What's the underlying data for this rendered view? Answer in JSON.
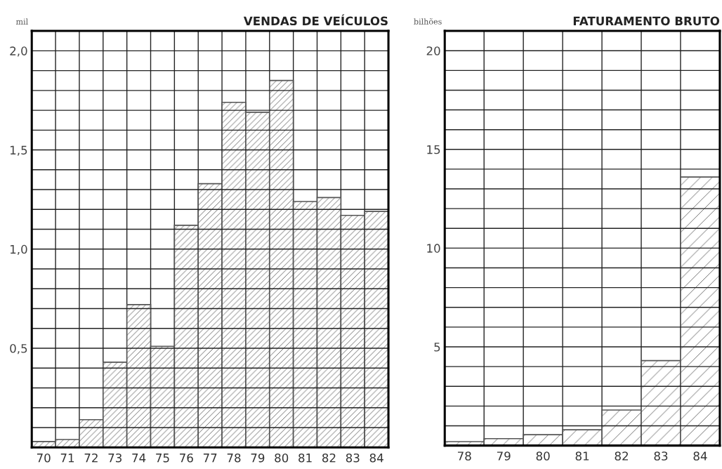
{
  "chart_data": [
    {
      "type": "bar",
      "title": "VENDAS DE VEÍCULOS",
      "ylabel": "mil",
      "categories": [
        "70",
        "71",
        "72",
        "73",
        "74",
        "75",
        "76",
        "77",
        "78",
        "79",
        "80",
        "81",
        "82",
        "83",
        "84"
      ],
      "values": [
        0.03,
        0.04,
        0.14,
        0.43,
        0.72,
        0.51,
        1.12,
        1.33,
        1.74,
        1.69,
        1.85,
        1.24,
        1.26,
        1.17,
        1.19
      ],
      "color": "#555555",
      "ylim": [
        0,
        2.1
      ],
      "yticks": [
        {
          "value": 0.1,
          "label": null
        },
        {
          "value": 0.2,
          "label": null
        },
        {
          "value": 0.3,
          "label": null
        },
        {
          "value": 0.4,
          "label": null
        },
        {
          "value": 0.5,
          "label": "0,5"
        },
        {
          "value": 0.6,
          "label": null
        },
        {
          "value": 0.7,
          "label": null
        },
        {
          "value": 0.8,
          "label": null
        },
        {
          "value": 0.9,
          "label": null
        },
        {
          "value": 1.0,
          "label": "1,0"
        },
        {
          "value": 1.1,
          "label": null
        },
        {
          "value": 1.2,
          "label": null
        },
        {
          "value": 1.3,
          "label": null
        },
        {
          "value": 1.4,
          "label": null
        },
        {
          "value": 1.5,
          "label": "1,5"
        },
        {
          "value": 1.6,
          "label": null
        },
        {
          "value": 1.7,
          "label": null
        },
        {
          "value": 1.8,
          "label": null
        },
        {
          "value": 1.9,
          "label": null
        },
        {
          "value": 2.0,
          "label": "2,0"
        }
      ],
      "grid": true
    },
    {
      "type": "bar",
      "title": "FATURAMENTO BRUTO",
      "ylabel": "bilhões",
      "categories": [
        "78",
        "79",
        "80",
        "81",
        "82",
        "83",
        "84"
      ],
      "values": [
        0.2,
        0.35,
        0.55,
        0.8,
        1.8,
        4.3,
        13.6
      ],
      "color": "#555555",
      "ylim": [
        0,
        21
      ],
      "yticks": [
        {
          "value": 1,
          "label": null
        },
        {
          "value": 2,
          "label": null
        },
        {
          "value": 3,
          "label": null
        },
        {
          "value": 4,
          "label": null
        },
        5,
        {
          "value": 6,
          "label": null
        },
        {
          "value": 7,
          "label": null
        },
        {
          "value": 8,
          "label": null
        },
        {
          "value": 9,
          "label": null
        },
        10,
        {
          "value": 11,
          "label": null
        },
        {
          "value": 12,
          "label": null
        },
        {
          "value": 13,
          "label": null
        },
        {
          "value": 14,
          "label": null
        },
        15,
        {
          "value": 16,
          "label": null
        },
        {
          "value": 17,
          "label": null
        },
        {
          "value": 18,
          "label": null
        },
        {
          "value": 19,
          "label": null
        },
        20
      ],
      "grid": true
    }
  ]
}
